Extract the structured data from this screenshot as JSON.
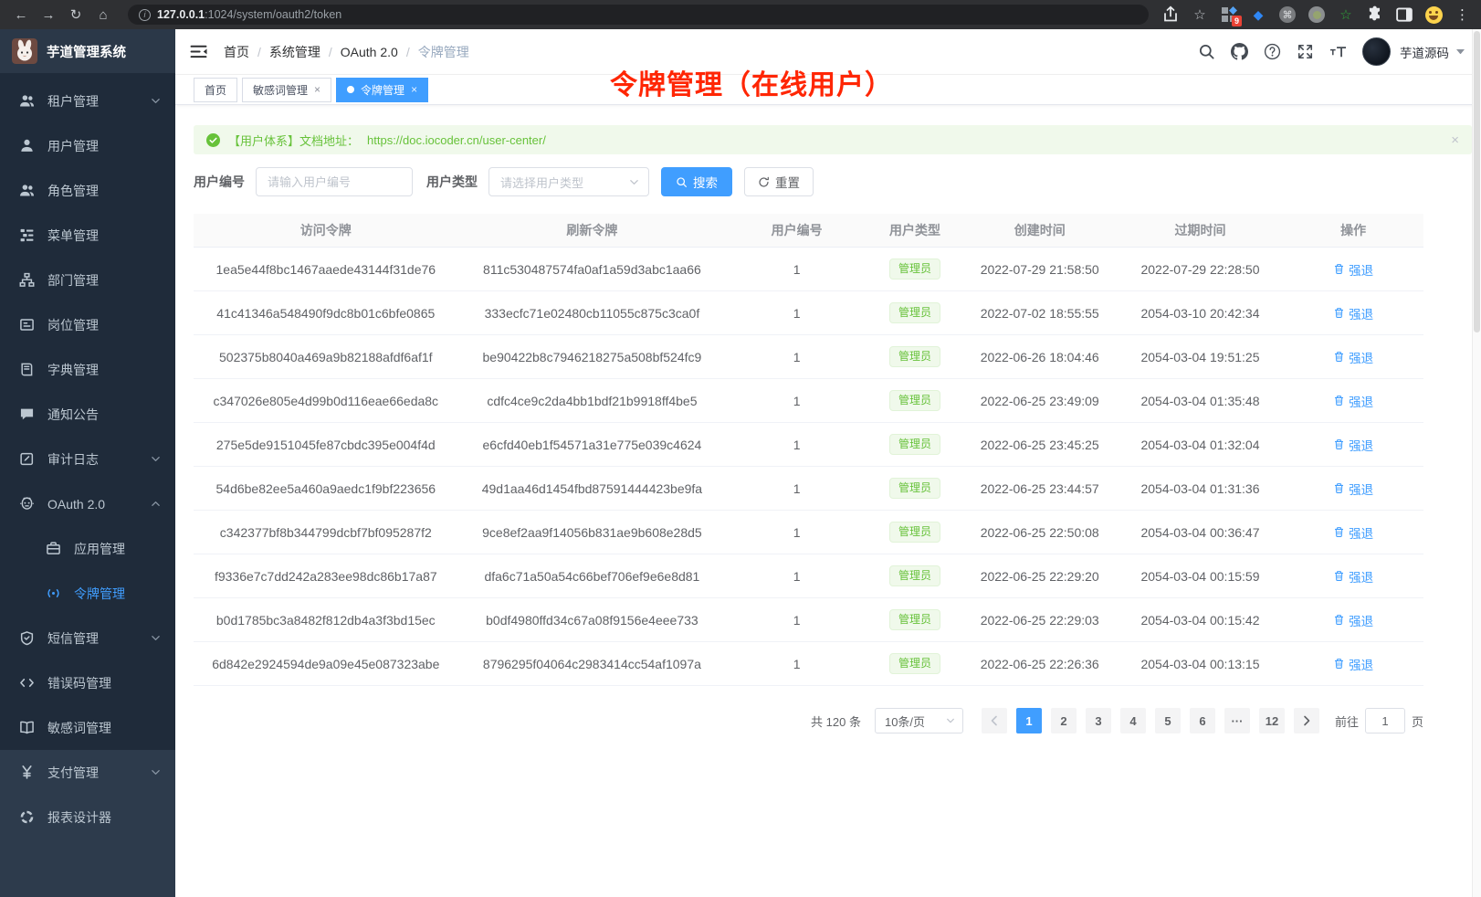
{
  "colors": {
    "accent": "#409eff",
    "success": "#67c23a",
    "annotation": "#ff2604",
    "sidebar_bg": "#1f2b3a"
  },
  "browser": {
    "url_host": "127.0.0.1",
    "url_path": ":1024/system/oauth2/token",
    "extension_badge": "9"
  },
  "sidebar": {
    "logo_title": "芋道管理系统",
    "items": [
      {
        "id": "tenant",
        "label": "租户管理",
        "icon": "people",
        "chevron": "down"
      },
      {
        "id": "user",
        "label": "用户管理",
        "icon": "user"
      },
      {
        "id": "role",
        "label": "角色管理",
        "icon": "people"
      },
      {
        "id": "menu",
        "label": "菜单管理",
        "icon": "tree"
      },
      {
        "id": "dept",
        "label": "部门管理",
        "icon": "org"
      },
      {
        "id": "post",
        "label": "岗位管理",
        "icon": "id-card"
      },
      {
        "id": "dict",
        "label": "字典管理",
        "icon": "book"
      },
      {
        "id": "notice",
        "label": "通知公告",
        "icon": "message"
      },
      {
        "id": "audit",
        "label": "审计日志",
        "icon": "edit",
        "chevron": "down"
      },
      {
        "id": "oauth",
        "label": "OAuth 2.0",
        "icon": "robot",
        "chevron": "up"
      },
      {
        "id": "app",
        "label": "应用管理",
        "icon": "briefcase",
        "sub": true
      },
      {
        "id": "token",
        "label": "令牌管理",
        "icon": "signal",
        "sub": true,
        "active": true
      },
      {
        "id": "sms",
        "label": "短信管理",
        "icon": "shield",
        "chevron": "down"
      },
      {
        "id": "errcode",
        "label": "错误码管理",
        "icon": "code"
      },
      {
        "id": "sensitive",
        "label": "敏感词管理",
        "icon": "open-book"
      },
      {
        "id": "pay",
        "label": "支付管理",
        "icon": "yen",
        "chevron": "down",
        "light": true
      },
      {
        "id": "report",
        "label": "报表设计器",
        "icon": "pie",
        "light": true
      }
    ]
  },
  "header": {
    "breadcrumb": [
      "首页",
      "系统管理",
      "OAuth 2.0",
      "令牌管理"
    ],
    "user_name": "芋道源码"
  },
  "annotation": {
    "text": "令牌管理（在线用户）"
  },
  "tabs": [
    {
      "id": "home",
      "label": "首页"
    },
    {
      "id": "sensitive",
      "label": "敏感词管理",
      "closable": true
    },
    {
      "id": "token",
      "label": "令牌管理",
      "closable": true,
      "active": true
    }
  ],
  "alert": {
    "text": "【用户体系】文档地址：",
    "link": "https://doc.iocoder.cn/user-center/",
    "close_label": "×"
  },
  "filters": {
    "user_id_label": "用户编号",
    "user_id_placeholder": "请输入用户编号",
    "user_type_label": "用户类型",
    "user_type_placeholder": "请选择用户类型",
    "search_label": "搜索",
    "reset_label": "重置"
  },
  "table": {
    "headers": [
      "访问令牌",
      "刷新令牌",
      "用户编号",
      "用户类型",
      "创建时间",
      "过期时间",
      "操作"
    ],
    "action_label": "强退",
    "rows": [
      {
        "access_token": "1ea5e44f8bc1467aaede43144f31de76",
        "refresh_token": "811c530487574fa0af1a59d3abc1aa66",
        "user_id": "1",
        "user_type": "管理员",
        "created": "2022-07-29 21:58:50",
        "expires": "2022-07-29 22:28:50"
      },
      {
        "access_token": "41c41346a548490f9dc8b01c6bfe0865",
        "refresh_token": "333ecfc71e02480cb11055c875c3ca0f",
        "user_id": "1",
        "user_type": "管理员",
        "created": "2022-07-02 18:55:55",
        "expires": "2054-03-10 20:42:34"
      },
      {
        "access_token": "502375b8040a469a9b82188afdf6af1f",
        "refresh_token": "be90422b8c7946218275a508bf524fc9",
        "user_id": "1",
        "user_type": "管理员",
        "created": "2022-06-26 18:04:46",
        "expires": "2054-03-04 19:51:25"
      },
      {
        "access_token": "c347026e805e4d99b0d116eae66eda8c",
        "refresh_token": "cdfc4ce9c2da4bb1bdf21b9918ff4be5",
        "user_id": "1",
        "user_type": "管理员",
        "created": "2022-06-25 23:49:09",
        "expires": "2054-03-04 01:35:48"
      },
      {
        "access_token": "275e5de9151045fe87cbdc395e004f4d",
        "refresh_token": "e6cfd40eb1f54571a31e775e039c4624",
        "user_id": "1",
        "user_type": "管理员",
        "created": "2022-06-25 23:45:25",
        "expires": "2054-03-04 01:32:04"
      },
      {
        "access_token": "54d6be82ee5a460a9aedc1f9bf223656",
        "refresh_token": "49d1aa46d1454fbd87591444423be9fa",
        "user_id": "1",
        "user_type": "管理员",
        "created": "2022-06-25 23:44:57",
        "expires": "2054-03-04 01:31:36"
      },
      {
        "access_token": "c342377bf8b344799dcbf7bf095287f2",
        "refresh_token": "9ce8ef2aa9f14056b831ae9b608e28d5",
        "user_id": "1",
        "user_type": "管理员",
        "created": "2022-06-25 22:50:08",
        "expires": "2054-03-04 00:36:47"
      },
      {
        "access_token": "f9336e7c7dd242a283ee98dc86b17a87",
        "refresh_token": "dfa6c71a50a54c66bef706ef9e6e8d81",
        "user_id": "1",
        "user_type": "管理员",
        "created": "2022-06-25 22:29:20",
        "expires": "2054-03-04 00:15:59"
      },
      {
        "access_token": "b0d1785bc3a8482f812db4a3f3bd15ec",
        "refresh_token": "b0df4980ffd34c67a08f9156e4eee733",
        "user_id": "1",
        "user_type": "管理员",
        "created": "2022-06-25 22:29:03",
        "expires": "2054-03-04 00:15:42"
      },
      {
        "access_token": "6d842e2924594de9a09e45e087323abe",
        "refresh_token": "8796295f04064c2983414cc54af1097a",
        "user_id": "1",
        "user_type": "管理员",
        "created": "2022-06-25 22:26:36",
        "expires": "2054-03-04 00:13:15"
      }
    ]
  },
  "pagination": {
    "total": "共 120 条",
    "page_size": "10条/页",
    "pages": [
      "1",
      "2",
      "3",
      "4",
      "5",
      "6",
      "···",
      "12"
    ],
    "active": "1",
    "jump_label": "前往",
    "jump_value": "1",
    "unit_label": "页"
  }
}
